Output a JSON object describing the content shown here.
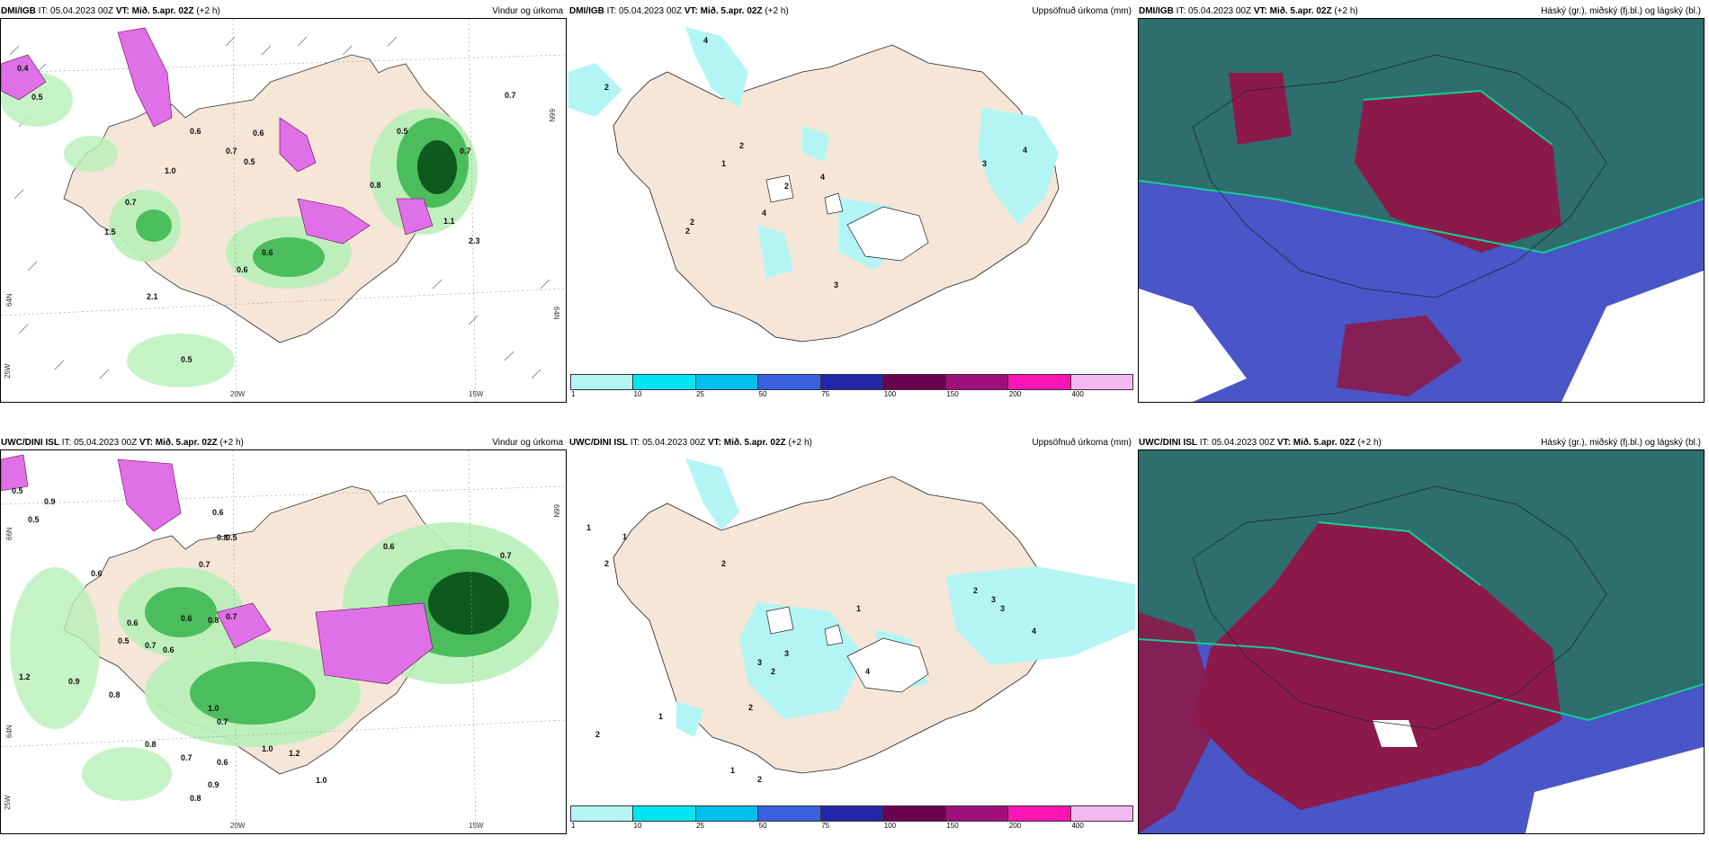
{
  "header": {
    "it_label": "IT:",
    "it_value": "05.04.2023 00Z",
    "vt_label": "VT:",
    "vt_value": "Mið. 5.apr. 02Z",
    "offset": "(+2 h)"
  },
  "rows": [
    {
      "model": "DMI/IGB"
    },
    {
      "model": "UWC/DINI ISL"
    }
  ],
  "panel_titles": {
    "wind_precip": "Vindur og úrkoma",
    "accum_precip": "Uppsöfnuð úrkoma (mm)",
    "clouds": "Háský (gr.), miðský (fj.bl.) og lágský (bl.)"
  },
  "axis_labels": {
    "lon_20w": "20W",
    "lon_15w": "15W",
    "lon_25w": "25W",
    "lat_66n": "66N",
    "lat_64n": "64N"
  },
  "colorbar": {
    "ticks": [
      "1",
      "10",
      "25",
      "50",
      "75",
      "100",
      "150",
      "200",
      "400"
    ],
    "colors": [
      "#b3f5f5",
      "#00e5f0",
      "#00bfef",
      "#3a5fe0",
      "#2426a8",
      "#6b0050",
      "#a0107a",
      "#ff14b4",
      "#f4b8f0"
    ]
  },
  "colors": {
    "land": "#f5e6d8",
    "precip_light": "#b8f0b8",
    "precip_mid": "#4bbd5c",
    "precip_dark": "#0e5a1e",
    "snow_pink": "#e070e8",
    "accum_cyan": "#b3f5f5",
    "cloud_high": "#2e6e6e",
    "cloud_mid": "#8b1a4a",
    "cloud_low": "#4a55c8"
  },
  "labels": {
    "dmi_wind": [
      "0.4",
      "0.5",
      "0.7",
      "0.6",
      "1.0",
      "0.7",
      "0.6",
      "0.8",
      "0.5",
      "0.6",
      "0.5",
      "0.7",
      "1.1",
      "2.3",
      "2.1",
      "0.5",
      "0.6",
      "0.7",
      "1.5"
    ],
    "dmi_accum": [
      "4",
      "2",
      "2",
      "1",
      "2",
      "4",
      "2",
      "3",
      "4",
      "2",
      "4",
      "3"
    ],
    "uwc_wind": [
      "0.5",
      "0.9",
      "0.5",
      "0.6",
      "0.5",
      "0.8",
      "0.6",
      "0.7",
      "0.6",
      "0.8",
      "0.7",
      "0.6",
      "0.5",
      "0.7",
      "0.6",
      "1.2",
      "0.9",
      "0.8",
      "1.0",
      "0.7",
      "0.8",
      "0.7",
      "0.6",
      "1.0",
      "0.9",
      "0.8",
      "1.2",
      "1.0",
      "0.6",
      "0.7"
    ],
    "uwc_accum": [
      "1",
      "2",
      "1",
      "2",
      "1",
      "3",
      "2",
      "3",
      "4",
      "2",
      "3",
      "3",
      "4",
      "2",
      "1",
      "2",
      "1",
      "2"
    ]
  }
}
